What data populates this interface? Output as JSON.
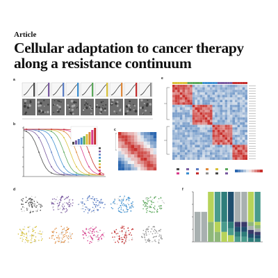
{
  "header": {
    "article_label": "Article",
    "title": "Cellular adaptation to cancer therapy along a resistance continuum"
  },
  "panel_labels": [
    "a",
    "b",
    "c",
    "d",
    "e",
    "f"
  ],
  "colors": {
    "heat_low": "#2b67b0",
    "heat_high": "#c9302c",
    "palette": [
      "#4a4a4a",
      "#7a5aa0",
      "#5b7dc4",
      "#e08a3c",
      "#d9c23a",
      "#5aa85a",
      "#d83c8c",
      "#3c8fd0",
      "#c42d2d",
      "#8f8f8f"
    ]
  }
}
